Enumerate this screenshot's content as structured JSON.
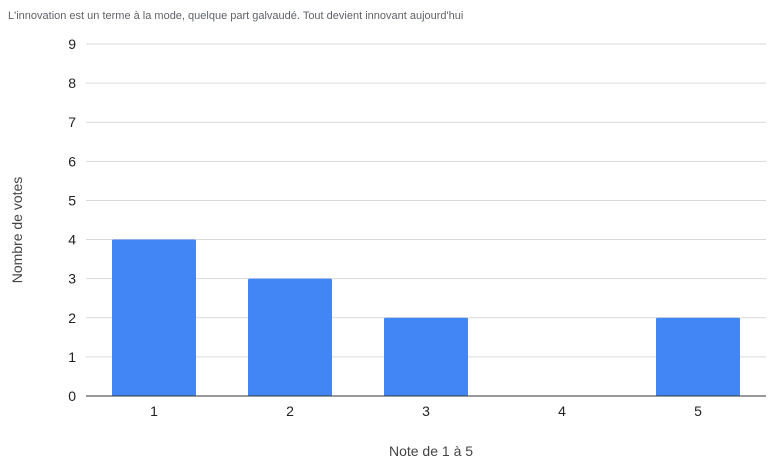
{
  "chart_data": {
    "type": "bar",
    "title": "L'innovation est un terme à la mode, quelque part galvaudé. Tout devient innovant aujourd'hui",
    "xlabel": "Note de 1 à 5",
    "ylabel": "Nombre de votes",
    "categories": [
      "1",
      "2",
      "3",
      "4",
      "5"
    ],
    "values": [
      4,
      3,
      2,
      0,
      2
    ],
    "ylim": [
      0,
      9
    ],
    "yticks": [
      0,
      1,
      2,
      3,
      4,
      5,
      6,
      7,
      8,
      9
    ],
    "grid": true,
    "legend": "none",
    "bar_color": "#4285f4"
  }
}
